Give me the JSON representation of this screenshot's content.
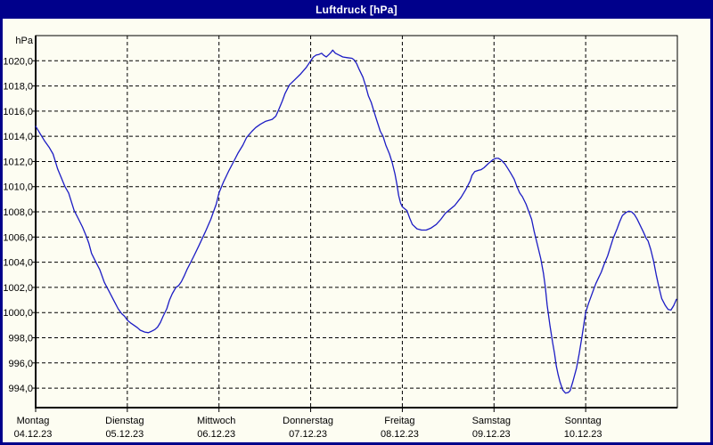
{
  "window": {
    "title": "Luftdruck [hPa]"
  },
  "colors": {
    "frame": "#00008b",
    "background": "#fdfdf2",
    "line": "#1c1cc4",
    "grid": "#000000",
    "title_text": "#ffffff",
    "label_text": "#000000"
  },
  "chart_data": {
    "type": "line",
    "title": "Luftdruck [hPa]",
    "y_unit_label": "hPa",
    "ylabel": "hPa",
    "xlabel": "",
    "grid": "dashed",
    "legend": "none",
    "ylim": [
      992.45,
      1022.0
    ],
    "xlim_days": [
      0,
      7
    ],
    "y_ticks": [
      {
        "value": 1020,
        "label": "1020,0"
      },
      {
        "value": 1018,
        "label": "1018,0"
      },
      {
        "value": 1016,
        "label": "1016,0"
      },
      {
        "value": 1014,
        "label": "1014,0"
      },
      {
        "value": 1012,
        "label": "1012,0"
      },
      {
        "value": 1010,
        "label": "1010,0"
      },
      {
        "value": 1008,
        "label": "1008,0"
      },
      {
        "value": 1006,
        "label": "1006,0"
      },
      {
        "value": 1004,
        "label": "1004,0"
      },
      {
        "value": 1002,
        "label": "1002,0"
      },
      {
        "value": 1000,
        "label": "1000,0"
      },
      {
        "value": 998,
        "label": "998,0"
      },
      {
        "value": 996,
        "label": "996,0"
      },
      {
        "value": 994,
        "label": "994,0"
      }
    ],
    "x_ticks": [
      {
        "pos_days": 0,
        "day": "Montag",
        "date": "04.12.23"
      },
      {
        "pos_days": 1,
        "day": "Dienstag",
        "date": "05.12.23"
      },
      {
        "pos_days": 2,
        "day": "Mittwoch",
        "date": "06.12.23"
      },
      {
        "pos_days": 3,
        "day": "Donnerstag",
        "date": "07.12.23"
      },
      {
        "pos_days": 4,
        "day": "Freitag",
        "date": "08.12.23"
      },
      {
        "pos_days": 5,
        "day": "Samstag",
        "date": "09.12.23"
      },
      {
        "pos_days": 6,
        "day": "Sonntag",
        "date": "10.12.23"
      }
    ],
    "series": [
      {
        "name": "Luftdruck",
        "points": [
          [
            0.0,
            1014.8
          ],
          [
            0.05,
            1014.2
          ],
          [
            0.1,
            1013.6
          ],
          [
            0.15,
            1013.1
          ],
          [
            0.19,
            1012.6
          ],
          [
            0.22,
            1011.9
          ],
          [
            0.24,
            1011.4
          ],
          [
            0.28,
            1010.7
          ],
          [
            0.32,
            1010.0
          ],
          [
            0.36,
            1009.5
          ],
          [
            0.39,
            1008.8
          ],
          [
            0.42,
            1008.1
          ],
          [
            0.47,
            1007.4
          ],
          [
            0.51,
            1006.8
          ],
          [
            0.55,
            1006.1
          ],
          [
            0.58,
            1005.5
          ],
          [
            0.61,
            1004.7
          ],
          [
            0.65,
            1004.1
          ],
          [
            0.7,
            1003.4
          ],
          [
            0.75,
            1002.4
          ],
          [
            0.8,
            1001.7
          ],
          [
            0.85,
            1001.0
          ],
          [
            0.9,
            1000.3
          ],
          [
            0.94,
            999.9
          ],
          [
            0.97,
            999.7
          ],
          [
            1.0,
            999.4
          ],
          [
            1.04,
            999.15
          ],
          [
            1.07,
            999.0
          ],
          [
            1.11,
            998.8
          ],
          [
            1.14,
            998.6
          ],
          [
            1.19,
            998.45
          ],
          [
            1.23,
            998.4
          ],
          [
            1.26,
            998.5
          ],
          [
            1.3,
            998.65
          ],
          [
            1.33,
            998.85
          ],
          [
            1.36,
            999.2
          ],
          [
            1.39,
            999.7
          ],
          [
            1.43,
            1000.3
          ],
          [
            1.46,
            1001.0
          ],
          [
            1.49,
            1001.5
          ],
          [
            1.53,
            1002.0
          ],
          [
            1.56,
            1002.15
          ],
          [
            1.59,
            1002.45
          ],
          [
            1.62,
            1002.9
          ],
          [
            1.65,
            1003.4
          ],
          [
            1.72,
            1004.4
          ],
          [
            1.78,
            1005.3
          ],
          [
            1.85,
            1006.4
          ],
          [
            1.91,
            1007.4
          ],
          [
            1.94,
            1008.0
          ],
          [
            1.97,
            1008.6
          ],
          [
            2.0,
            1009.5
          ],
          [
            2.05,
            1010.4
          ],
          [
            2.11,
            1011.3
          ],
          [
            2.16,
            1012.0
          ],
          [
            2.21,
            1012.7
          ],
          [
            2.26,
            1013.3
          ],
          [
            2.3,
            1013.9
          ],
          [
            2.36,
            1014.4
          ],
          [
            2.4,
            1014.7
          ],
          [
            2.45,
            1014.95
          ],
          [
            2.51,
            1015.2
          ],
          [
            2.58,
            1015.35
          ],
          [
            2.62,
            1015.6
          ],
          [
            2.65,
            1016.1
          ],
          [
            2.69,
            1016.8
          ],
          [
            2.72,
            1017.4
          ],
          [
            2.77,
            1018.1
          ],
          [
            2.82,
            1018.45
          ],
          [
            2.89,
            1018.95
          ],
          [
            2.95,
            1019.45
          ],
          [
            3.0,
            1020.0
          ],
          [
            3.03,
            1020.3
          ],
          [
            3.06,
            1020.45
          ],
          [
            3.09,
            1020.5
          ],
          [
            3.12,
            1020.6
          ],
          [
            3.14,
            1020.45
          ],
          [
            3.17,
            1020.3
          ],
          [
            3.2,
            1020.5
          ],
          [
            3.22,
            1020.65
          ],
          [
            3.24,
            1020.85
          ],
          [
            3.27,
            1020.6
          ],
          [
            3.31,
            1020.45
          ],
          [
            3.35,
            1020.3
          ],
          [
            3.4,
            1020.25
          ],
          [
            3.45,
            1020.2
          ],
          [
            3.47,
            1020.1
          ],
          [
            3.5,
            1019.8
          ],
          [
            3.53,
            1019.3
          ],
          [
            3.57,
            1018.7
          ],
          [
            3.6,
            1018.0
          ],
          [
            3.63,
            1017.2
          ],
          [
            3.66,
            1016.7
          ],
          [
            3.69,
            1016.0
          ],
          [
            3.72,
            1015.3
          ],
          [
            3.76,
            1014.4
          ],
          [
            3.79,
            1014.0
          ],
          [
            3.82,
            1013.3
          ],
          [
            3.86,
            1012.6
          ],
          [
            3.89,
            1011.9
          ],
          [
            3.92,
            1011.0
          ],
          [
            3.94,
            1010.2
          ],
          [
            3.96,
            1009.3
          ],
          [
            3.98,
            1008.7
          ],
          [
            4.0,
            1008.4
          ],
          [
            4.05,
            1008.1
          ],
          [
            4.08,
            1007.5
          ],
          [
            4.11,
            1007.0
          ],
          [
            4.16,
            1006.65
          ],
          [
            4.21,
            1006.55
          ],
          [
            4.26,
            1006.55
          ],
          [
            4.31,
            1006.7
          ],
          [
            4.37,
            1007.0
          ],
          [
            4.42,
            1007.4
          ],
          [
            4.47,
            1007.9
          ],
          [
            4.52,
            1008.2
          ],
          [
            4.57,
            1008.5
          ],
          [
            4.64,
            1009.15
          ],
          [
            4.69,
            1009.75
          ],
          [
            4.74,
            1010.45
          ],
          [
            4.76,
            1010.9
          ],
          [
            4.79,
            1011.2
          ],
          [
            4.83,
            1011.3
          ],
          [
            4.86,
            1011.35
          ],
          [
            4.89,
            1011.5
          ],
          [
            4.94,
            1011.85
          ],
          [
            4.99,
            1012.15
          ],
          [
            5.02,
            1012.25
          ],
          [
            5.05,
            1012.25
          ],
          [
            5.08,
            1012.1
          ],
          [
            5.12,
            1011.8
          ],
          [
            5.15,
            1011.45
          ],
          [
            5.18,
            1011.1
          ],
          [
            5.22,
            1010.6
          ],
          [
            5.25,
            1010.0
          ],
          [
            5.28,
            1009.5
          ],
          [
            5.31,
            1009.2
          ],
          [
            5.35,
            1008.6
          ],
          [
            5.38,
            1008.0
          ],
          [
            5.41,
            1007.4
          ],
          [
            5.44,
            1006.4
          ],
          [
            5.47,
            1005.5
          ],
          [
            5.51,
            1004.3
          ],
          [
            5.54,
            1003.1
          ],
          [
            5.56,
            1002.0
          ],
          [
            5.58,
            1000.6
          ],
          [
            5.61,
            999.0
          ],
          [
            5.64,
            997.6
          ],
          [
            5.66,
            996.75
          ],
          [
            5.68,
            995.75
          ],
          [
            5.7,
            995.05
          ],
          [
            5.72,
            994.5
          ],
          [
            5.75,
            993.85
          ],
          [
            5.78,
            993.6
          ],
          [
            5.81,
            993.65
          ],
          [
            5.83,
            993.8
          ],
          [
            5.86,
            994.5
          ],
          [
            5.9,
            995.6
          ],
          [
            5.93,
            996.75
          ],
          [
            5.96,
            998.1
          ],
          [
            6.0,
            1000.0
          ],
          [
            6.03,
            1000.7
          ],
          [
            6.06,
            1001.3
          ],
          [
            6.09,
            1001.9
          ],
          [
            6.11,
            1002.3
          ],
          [
            6.14,
            1002.75
          ],
          [
            6.17,
            1003.2
          ],
          [
            6.2,
            1003.8
          ],
          [
            6.24,
            1004.5
          ],
          [
            6.27,
            1005.2
          ],
          [
            6.3,
            1005.9
          ],
          [
            6.34,
            1006.6
          ],
          [
            6.37,
            1007.2
          ],
          [
            6.4,
            1007.7
          ],
          [
            6.44,
            1007.95
          ],
          [
            6.47,
            1008.05
          ],
          [
            6.5,
            1008.0
          ],
          [
            6.53,
            1007.8
          ],
          [
            6.56,
            1007.45
          ],
          [
            6.59,
            1007.0
          ],
          [
            6.63,
            1006.4
          ],
          [
            6.66,
            1005.9
          ],
          [
            6.68,
            1005.7
          ],
          [
            6.71,
            1005.0
          ],
          [
            6.74,
            1004.1
          ],
          [
            6.77,
            1003.0
          ],
          [
            6.8,
            1002.0
          ],
          [
            6.83,
            1001.1
          ],
          [
            6.87,
            1000.55
          ],
          [
            6.9,
            1000.25
          ],
          [
            6.93,
            1000.2
          ],
          [
            6.96,
            1000.55
          ],
          [
            6.99,
            1001.05
          ]
        ]
      }
    ]
  }
}
